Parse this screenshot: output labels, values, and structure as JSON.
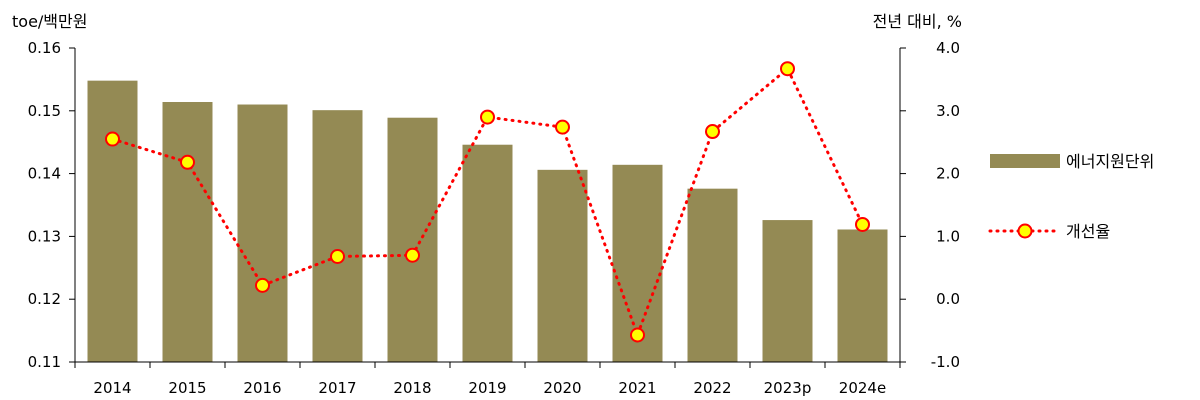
{
  "chart_data": {
    "type": "bar",
    "categories": [
      "2014",
      "2015",
      "2016",
      "2017",
      "2018",
      "2019",
      "2020",
      "2021",
      "2022",
      "2023p",
      "2024e"
    ],
    "series": [
      {
        "name": "에너지원단위",
        "type": "bar",
        "axis": "left",
        "color": "#948a54",
        "values": [
          0.1548,
          0.1514,
          0.151,
          0.1501,
          0.1489,
          0.1446,
          0.1406,
          0.1414,
          0.1376,
          0.1326,
          0.1311
        ]
      },
      {
        "name": "개선율",
        "type": "line",
        "axis": "right",
        "line_color": "#ff0000",
        "marker_fill": "#ffff00",
        "marker_edge": "#ff0000",
        "line_style": "dotted",
        "values": [
          2.55,
          2.18,
          0.22,
          0.68,
          0.7,
          2.9,
          2.74,
          -0.57,
          2.67,
          3.67,
          1.19
        ]
      }
    ],
    "ylabel": "toe/백만원",
    "ylabel_right": "전년 대비, %",
    "ylim": [
      0.11,
      0.16
    ],
    "ylim_right": [
      -1.0,
      4.0
    ],
    "yticks": [
      "0.11",
      "0.12",
      "0.13",
      "0.14",
      "0.15",
      "0.16"
    ],
    "yticks_right": [
      "-1.0",
      "0.0",
      "1.0",
      "2.0",
      "3.0",
      "4.0"
    ],
    "legend_position": "right",
    "grid": false
  }
}
